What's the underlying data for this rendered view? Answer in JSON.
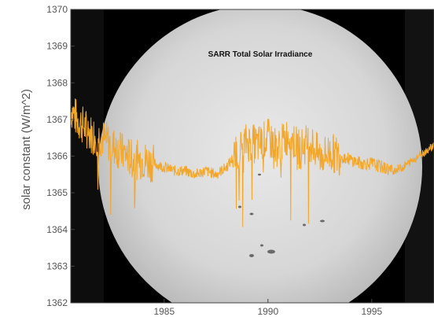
{
  "chart_data": {
    "type": "line",
    "title": "SARR Total Solar Irradiance",
    "xlabel": "",
    "ylabel": "solar constant (W/m^2)",
    "xlim": [
      1980.5,
      1998.0
    ],
    "ylim": [
      1362,
      1370
    ],
    "y_ticks": [
      "1362",
      "1363",
      "1364",
      "1365",
      "1366",
      "1367",
      "1368",
      "1369",
      "1370"
    ],
    "x_ticks": [
      "1985",
      "1990",
      "1995"
    ],
    "grid": false,
    "background_image": "full-disk-sun-photo",
    "colors": {
      "series": "#f2a62a",
      "sun_disk": "#d8d8d8",
      "sky": "#000000"
    },
    "series": [
      {
        "name": "",
        "x": [
          1980.5,
          1980.8,
          1981.0,
          1981.5,
          1982.0,
          1982.5,
          1983.0,
          1983.5,
          1984.0,
          1984.5,
          1985.0,
          1985.5,
          1986.0,
          1986.5,
          1987.0,
          1987.5,
          1988.0,
          1988.5,
          1989.0,
          1989.5,
          1990.0,
          1990.5,
          1991.0,
          1991.5,
          1992.0,
          1992.5,
          1993.0,
          1993.5,
          1994.0,
          1994.5,
          1995.0,
          1995.5,
          1996.0,
          1996.5,
          1997.0,
          1997.5,
          1998.0
        ],
        "y": [
          1367.3,
          1367.0,
          1366.9,
          1366.6,
          1366.5,
          1366.3,
          1366.1,
          1365.9,
          1365.9,
          1365.8,
          1365.7,
          1365.6,
          1365.6,
          1365.5,
          1365.6,
          1365.5,
          1365.7,
          1366.1,
          1366.4,
          1366.3,
          1366.5,
          1366.2,
          1366.6,
          1366.2,
          1366.4,
          1366.0,
          1366.1,
          1366.0,
          1365.9,
          1365.8,
          1365.8,
          1365.7,
          1365.6,
          1365.7,
          1365.9,
          1366.1,
          1366.3
        ]
      }
    ]
  }
}
